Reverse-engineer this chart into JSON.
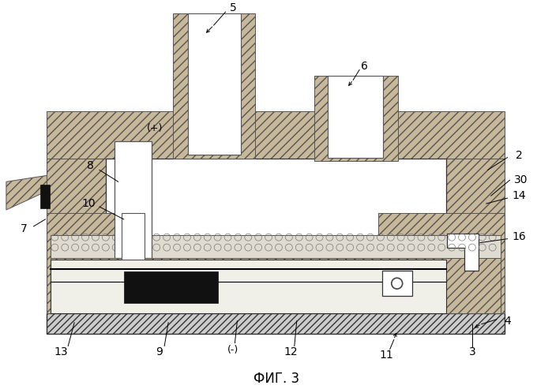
{
  "title": "ФИГ. 3",
  "bg": "#ffffff",
  "brick": "#c8b89a",
  "brick_ec": "#555555",
  "white": "#ffffff",
  "black": "#111111",
  "light_gray": "#e0ddd8",
  "circle_color": "#888888"
}
